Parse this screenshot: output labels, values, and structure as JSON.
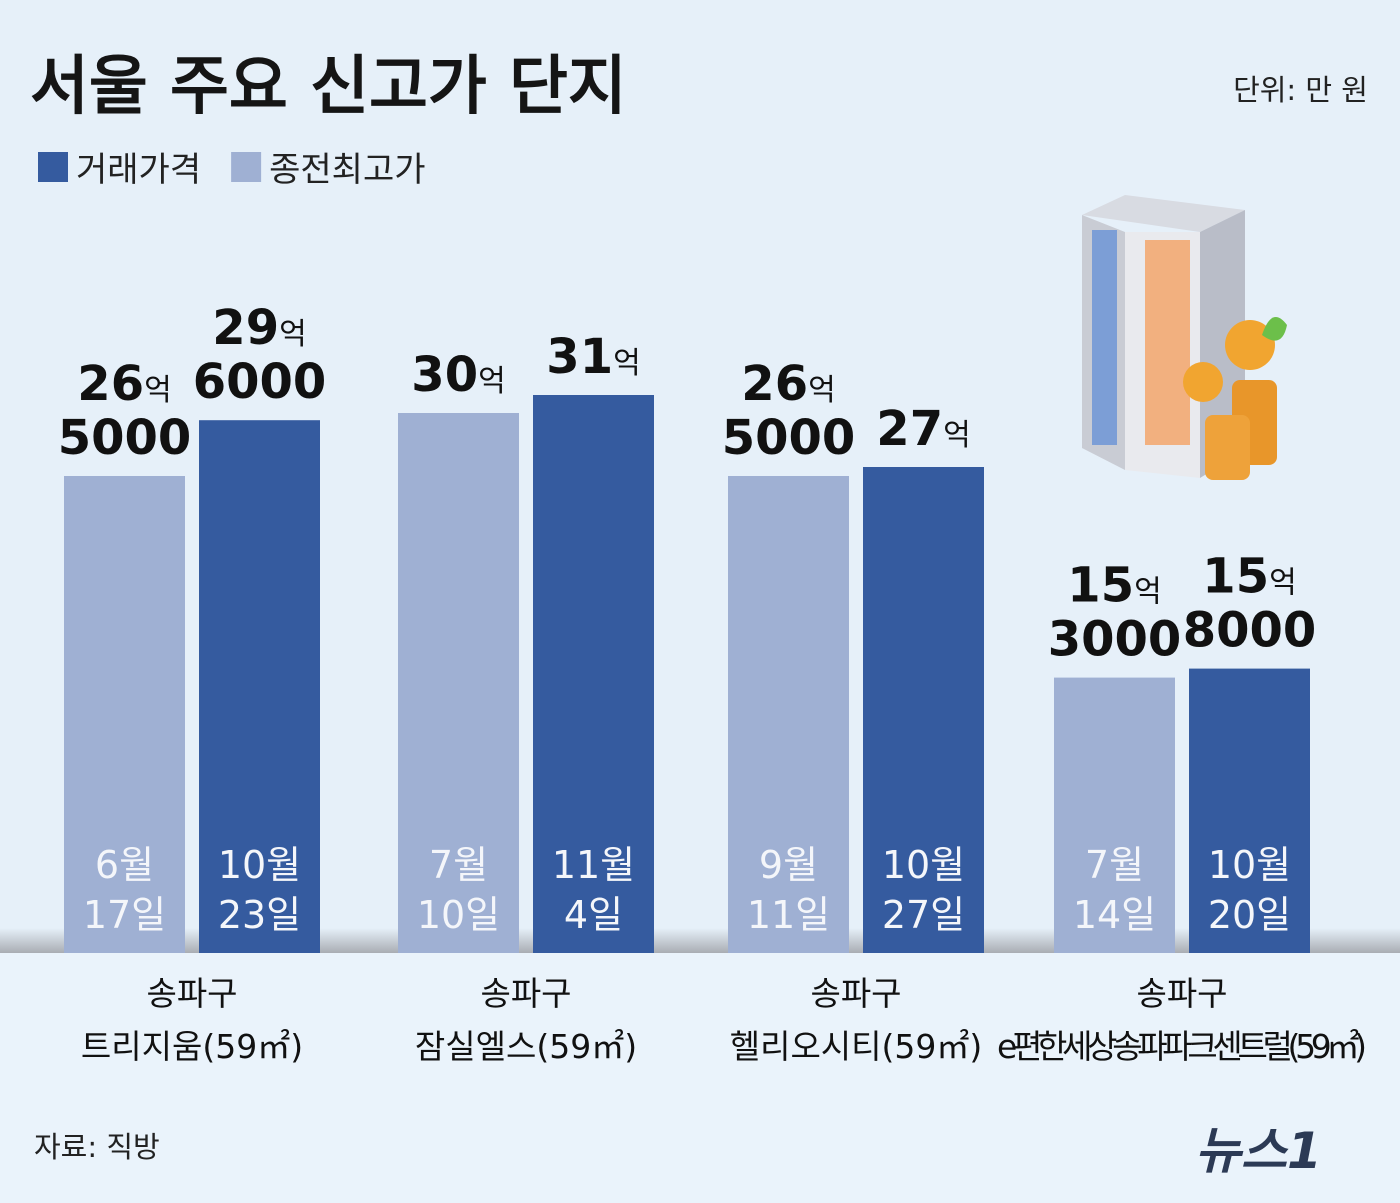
{
  "chart_data": {
    "type": "bar",
    "title": "서울 주요 신고가 단지",
    "unit": "단위: 만 원",
    "source": "자료: 직방",
    "brand": "뉴스1",
    "districts": [
      "송파구",
      "송파구",
      "송파구",
      "송파구"
    ],
    "categories": [
      "트리지움(59㎡)",
      "잠실엘스(59㎡)",
      "헬리오시티(59㎡)",
      "e편한세상송파파크센트럴(59㎡)"
    ],
    "series": [
      {
        "name": "종전최고가",
        "color": "#9fb0d3",
        "values": [
          265000,
          300000,
          265000,
          153000
        ],
        "value_labels": [
          [
            "26억",
            "5000"
          ],
          [
            "30억"
          ],
          [
            "26억",
            "5000"
          ],
          [
            "15억",
            "3000"
          ]
        ],
        "date_labels": [
          [
            "6월",
            "17일"
          ],
          [
            "7월",
            "10일"
          ],
          [
            "9월",
            "11일"
          ],
          [
            "7월",
            "14일"
          ]
        ]
      },
      {
        "name": "거래가격",
        "color": "#355b9f",
        "values": [
          296000,
          310000,
          270000,
          158000
        ],
        "value_labels": [
          [
            "29억",
            "6000"
          ],
          [
            "31억"
          ],
          [
            "27억"
          ],
          [
            "15억",
            "8000"
          ]
        ],
        "date_labels": [
          [
            "10월",
            "23일"
          ],
          [
            "11월",
            "4일"
          ],
          [
            "10월",
            "27일"
          ],
          [
            "10월",
            "20일"
          ]
        ]
      }
    ]
  }
}
